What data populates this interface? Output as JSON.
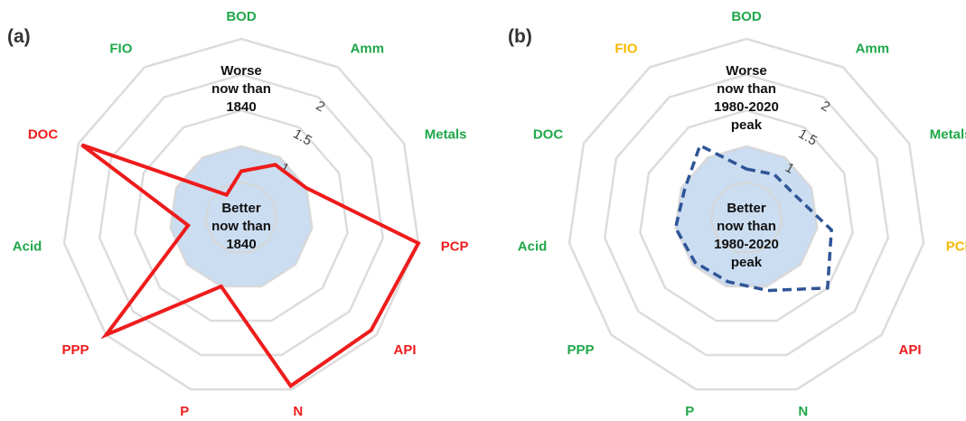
{
  "colors": {
    "green": "#1fa84a",
    "red": "#ee1c1c",
    "amber": "#f5b800",
    "grid": "#d6d6d6",
    "baseline_fill": "#a9c6e8",
    "series_a": "#ee1c1c",
    "series_b": "#2f5597"
  },
  "chart_data": [
    {
      "type": "radar",
      "panel_label": "(a)",
      "axes": [
        "BOD",
        "Amm",
        "Metals",
        "PCP",
        "API",
        "N",
        "P",
        "PPP",
        "Acid",
        "DOC",
        "FIO"
      ],
      "axis_colors": [
        "green",
        "green",
        "green",
        "red",
        "red",
        "red",
        "red",
        "red",
        "green",
        "red",
        "green"
      ],
      "rlim": [
        0,
        2.5
      ],
      "rings": [
        0.5,
        1,
        1.5,
        2,
        2.5
      ],
      "tick_labels": [
        {
          "value": 1,
          "label": "1"
        },
        {
          "value": 1.5,
          "label": "1.5"
        },
        {
          "value": 2,
          "label": "2"
        }
      ],
      "baseline": {
        "values": [
          1,
          1,
          1,
          1,
          1,
          1,
          1,
          1,
          1,
          1,
          1
        ]
      },
      "series": [
        {
          "values": [
            0.65,
            0.88,
            1.0,
            2.5,
            2.4,
            2.45,
            1.0,
            2.5,
            0.75,
            2.45,
            0.38
          ],
          "style": "solid"
        }
      ],
      "annotations": {
        "worse": [
          "Worse",
          "now than",
          "1840"
        ],
        "better": [
          "Better",
          "now than",
          "1840"
        ]
      }
    },
    {
      "type": "radar",
      "panel_label": "(b)",
      "axes": [
        "BOD",
        "Amm",
        "Metals",
        "PCP",
        "API",
        "N",
        "P",
        "PPP",
        "Acid",
        "DOC",
        "FIO"
      ],
      "axis_colors": [
        "green",
        "green",
        "green",
        "amber",
        "red",
        "green",
        "green",
        "green",
        "green",
        "green",
        "amber"
      ],
      "rlim": [
        0,
        2.5
      ],
      "rings": [
        0.5,
        1,
        1.5,
        2,
        2.5
      ],
      "tick_labels": [
        {
          "value": 1,
          "label": "1"
        },
        {
          "value": 1.5,
          "label": "1.5"
        },
        {
          "value": 2,
          "label": "2"
        }
      ],
      "baseline": {
        "values": [
          1,
          1,
          1,
          1,
          1,
          1,
          1,
          1,
          1,
          1,
          1
        ]
      },
      "series": [
        {
          "values": [
            0.68,
            0.72,
            0.75,
            1.2,
            1.5,
            1.06,
            0.93,
            0.95,
            1.0,
            0.95,
            1.2
          ],
          "style": "dashed"
        }
      ],
      "annotations": {
        "worse": [
          "Worse",
          "now than",
          "1980-2020",
          "peak"
        ],
        "better": [
          "Better",
          "now than",
          "1980-2020",
          "peak"
        ]
      }
    }
  ]
}
